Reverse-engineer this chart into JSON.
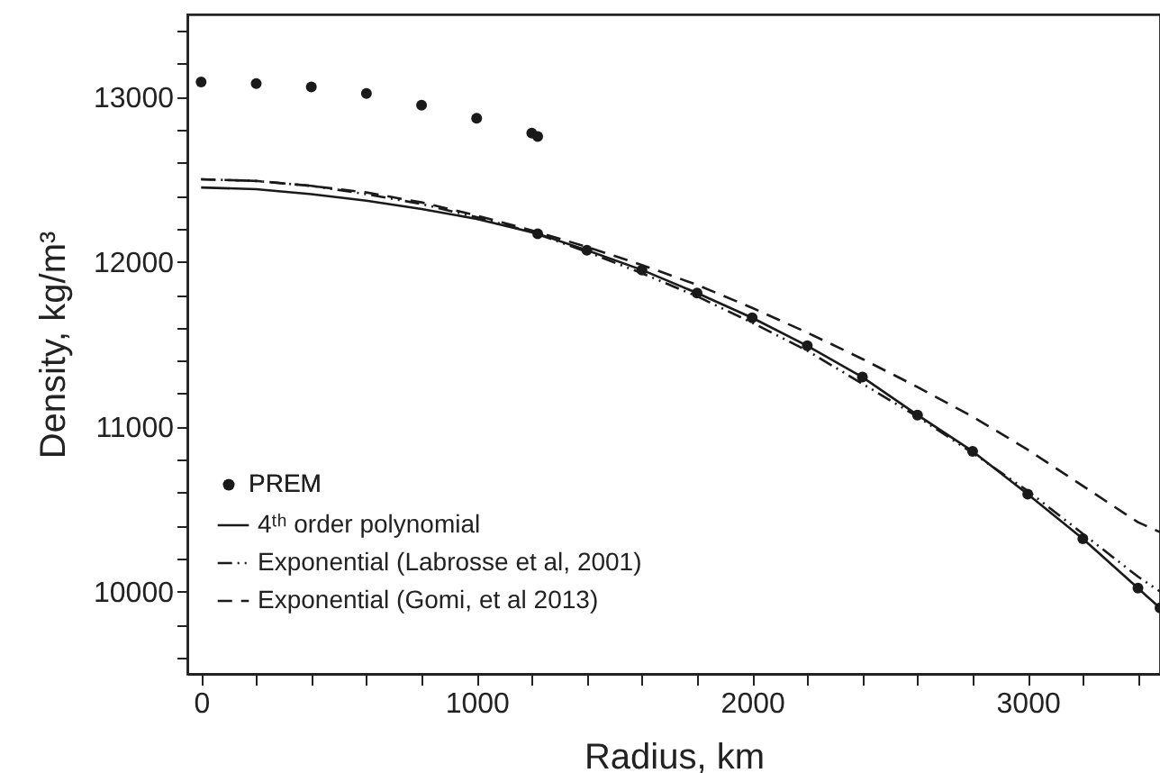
{
  "chart_data": {
    "type": "line",
    "xlabel": "Radius, km",
    "ylabel": "Density, kg/m³",
    "xlim": [
      -50,
      3480
    ],
    "ylim": [
      9500,
      13500
    ],
    "xticks": [
      0,
      {
        "value": 200,
        "label": null
      },
      {
        "value": 400,
        "label": null
      },
      {
        "value": 600,
        "label": null
      },
      {
        "value": 800,
        "label": null
      },
      1000,
      {
        "value": 1200,
        "label": null
      },
      {
        "value": 1400,
        "label": null
      },
      {
        "value": 1600,
        "label": null
      },
      {
        "value": 1800,
        "label": null
      },
      2000,
      {
        "value": 2200,
        "label": null
      },
      {
        "value": 2400,
        "label": null
      },
      {
        "value": 2600,
        "label": null
      },
      {
        "value": 2800,
        "label": null
      },
      3000,
      {
        "value": 3200,
        "label": null
      },
      {
        "value": 3400,
        "label": null
      }
    ],
    "yticks": [
      {
        "value": 9600,
        "label": null
      },
      {
        "value": 9800,
        "label": null
      },
      10000,
      {
        "value": 10200,
        "label": null
      },
      {
        "value": 10400,
        "label": null
      },
      {
        "value": 10600,
        "label": null
      },
      {
        "value": 10800,
        "label": null
      },
      11000,
      {
        "value": 11200,
        "label": null
      },
      {
        "value": 11400,
        "label": null
      },
      {
        "value": 11600,
        "label": null
      },
      {
        "value": 11800,
        "label": null
      },
      12000,
      {
        "value": 12200,
        "label": null
      },
      {
        "value": 12400,
        "label": null
      },
      {
        "value": 12600,
        "label": null
      },
      {
        "value": 12800,
        "label": null
      },
      13000,
      {
        "value": 13200,
        "label": null
      },
      {
        "value": 13400,
        "label": null
      }
    ],
    "grid": false,
    "legend": "bottom left",
    "series": [
      {
        "name": "PREM",
        "type": "scatter",
        "marker": "circle",
        "color": "#1a1a1a",
        "x": [
          0,
          200,
          400,
          600,
          800,
          1000,
          1200,
          1221.5,
          1221.5,
          1400,
          1600,
          1800,
          2000,
          2200,
          2400,
          2600,
          2800,
          3000,
          3200,
          3400,
          3480
        ],
        "values": [
          13090,
          13080,
          13060,
          13020,
          12950,
          12870,
          12780,
          12760,
          12170,
          12070,
          11950,
          11810,
          11660,
          11490,
          11300,
          11070,
          10850,
          10590,
          10320,
          10020,
          9900
        ]
      },
      {
        "name": "4ᵗʰ order polynomial",
        "type": "line",
        "line_style": "solid",
        "color": "#1a1a1a",
        "x": [
          0,
          200,
          400,
          600,
          800,
          1000,
          1221.5,
          1400,
          1600,
          1800,
          2000,
          2200,
          2400,
          2600,
          2800,
          3000,
          3200,
          3400,
          3480
        ],
        "values": [
          12450,
          12440,
          12410,
          12370,
          12320,
          12260,
          12170,
          12070,
          11950,
          11810,
          11660,
          11490,
          11300,
          11070,
          10850,
          10590,
          10320,
          10020,
          9900
        ]
      },
      {
        "name": "Exponential (Labrosse et al, 2001)",
        "type": "line",
        "line_style": "dashdot",
        "color": "#1a1a1a",
        "x": [
          0,
          200,
          400,
          600,
          800,
          1000,
          1200,
          1400,
          1600,
          1800,
          2000,
          2200,
          2400,
          2600,
          2800,
          3000,
          3200,
          3400,
          3480
        ],
        "values": [
          12500,
          12490,
          12460,
          12410,
          12350,
          12270,
          12180,
          12060,
          11930,
          11790,
          11630,
          11460,
          11260,
          11060,
          10840,
          10610,
          10350,
          10090,
          10000
        ]
      },
      {
        "name": "Exponential (Gomi, et al 2013)",
        "type": "line",
        "line_style": "dashed",
        "color": "#1a1a1a",
        "x": [
          0,
          200,
          400,
          600,
          800,
          1000,
          1200,
          1400,
          1600,
          1800,
          2000,
          2200,
          2400,
          2600,
          2800,
          3000,
          3200,
          3400,
          3480
        ],
        "values": [
          12500,
          12490,
          12460,
          12420,
          12360,
          12280,
          12190,
          12090,
          11980,
          11860,
          11720,
          11570,
          11410,
          11240,
          11060,
          10860,
          10640,
          10420,
          10360
        ]
      }
    ]
  }
}
